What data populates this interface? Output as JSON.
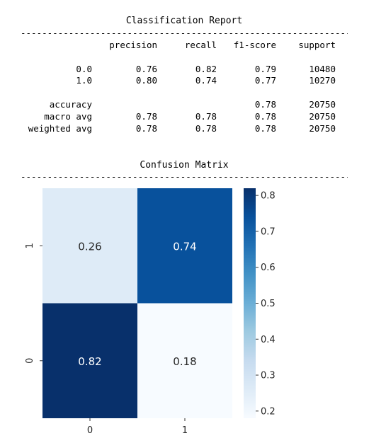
{
  "report": {
    "title": "Classification Report",
    "rule": "------------------------------------------------------------------------",
    "headers": [
      "precision",
      "recall",
      "f1-score",
      "support"
    ],
    "rows": [
      {
        "label": "0.0",
        "precision": "0.76",
        "recall": "0.82",
        "f1": "0.79",
        "support": "10480"
      },
      {
        "label": "1.0",
        "precision": "0.80",
        "recall": "0.74",
        "f1": "0.77",
        "support": "10270"
      },
      {
        "label": "accuracy",
        "precision": "",
        "recall": "",
        "f1": "0.78",
        "support": "20750"
      },
      {
        "label": "macro avg",
        "precision": "0.78",
        "recall": "0.78",
        "f1": "0.78",
        "support": "20750"
      },
      {
        "label": "weighted avg",
        "precision": "0.78",
        "recall": "0.78",
        "f1": "0.78",
        "support": "20750"
      }
    ]
  },
  "matrix_section": {
    "title": "Confusion Matrix",
    "rule": "------------------------------------------------------------------------"
  },
  "chart_data": {
    "type": "heatmap",
    "colormap": "Blues",
    "x_categories": [
      "0",
      "1"
    ],
    "y_categories": [
      "1",
      "0"
    ],
    "values": [
      [
        0.26,
        0.74
      ],
      [
        0.82,
        0.18
      ]
    ],
    "labels": [
      [
        "0.26",
        "0.74"
      ],
      [
        "0.82",
        "0.18"
      ]
    ],
    "colorbar": {
      "range": [
        0.18,
        0.82
      ],
      "ticks": [
        0.2,
        0.3,
        0.4,
        0.5,
        0.6,
        0.7,
        0.8
      ],
      "tick_labels": [
        "0.2",
        "0.3",
        "0.4",
        "0.5",
        "0.6",
        "0.7",
        "0.8"
      ]
    }
  }
}
